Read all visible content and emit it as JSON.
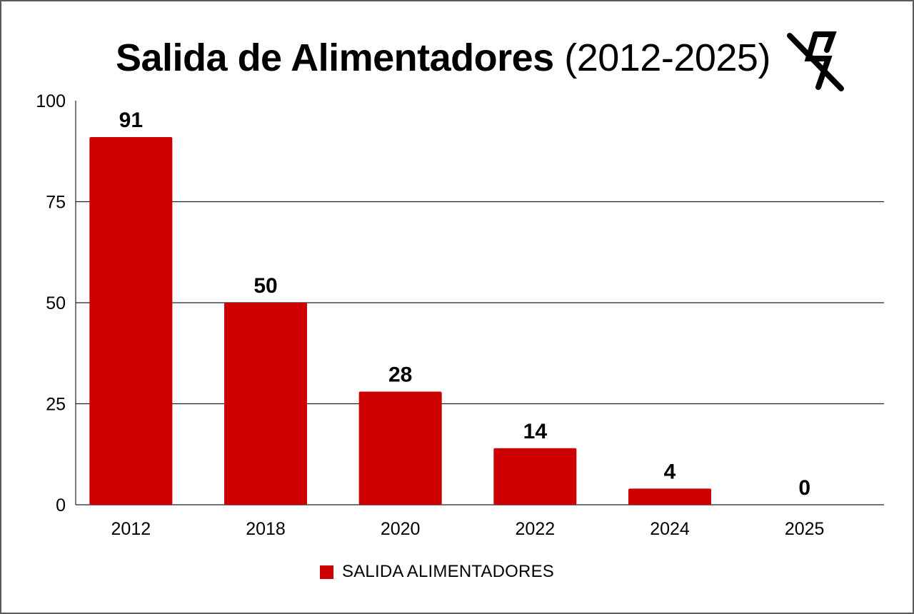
{
  "title": {
    "bold": "Salida de Alimentadores",
    "normal": "(2012-2025)"
  },
  "title_icon": "power-off-icon",
  "chart_data": {
    "type": "bar",
    "title": "Salida de Alimentadores (2012-2025)",
    "categories": [
      "2012",
      "2018",
      "2020",
      "2022",
      "2024",
      "2025"
    ],
    "series": [
      {
        "name": "SALIDA ALIMENTADORES",
        "values": [
          91,
          50,
          28,
          14,
          4,
          0
        ],
        "color": "#cc0000"
      }
    ],
    "ylim": [
      0,
      100
    ],
    "yticks": [
      0,
      25,
      50,
      75,
      100
    ],
    "grid": true,
    "legend_position": "bottom",
    "data_labels": true
  }
}
